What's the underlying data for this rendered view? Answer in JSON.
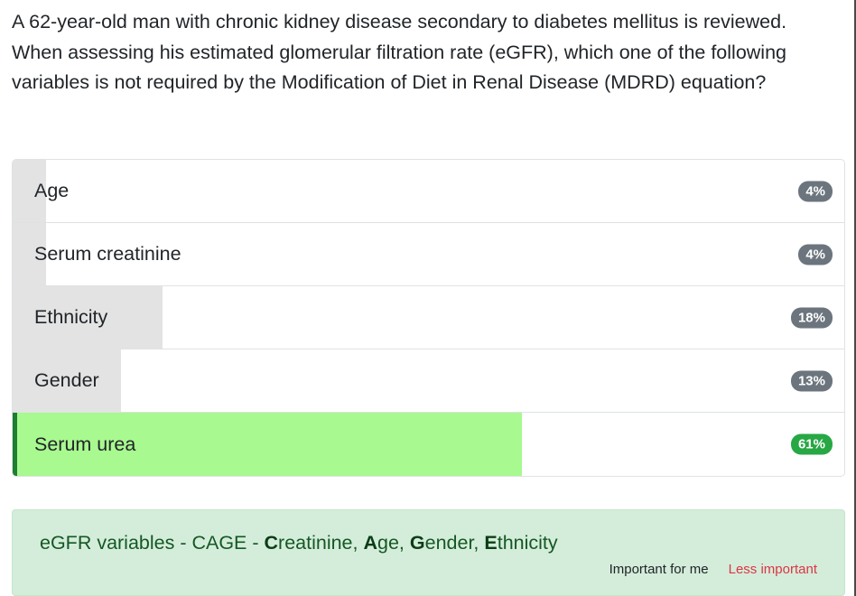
{
  "question": {
    "text": "A 62-year-old man with chronic kidney disease secondary to diabetes mellitus is reviewed. When assessing his estimated glomerular filtration rate (eGFR), which one of the following variables is not required by the Modification of Diet in Renal Disease (MDRD) equation?"
  },
  "answers": [
    {
      "label": "Age",
      "percent_label": "4%",
      "percent": 4,
      "correct": false
    },
    {
      "label": "Serum creatinine",
      "percent_label": "4%",
      "percent": 4,
      "correct": false
    },
    {
      "label": "Ethnicity",
      "percent_label": "18%",
      "percent": 18,
      "correct": false
    },
    {
      "label": "Gender",
      "percent_label": "13%",
      "percent": 13,
      "correct": false
    },
    {
      "label": "Serum urea",
      "percent_label": "61%",
      "percent": 61,
      "correct": true
    }
  ],
  "explanation": {
    "prefix": "eGFR variables - CAGE - ",
    "items": [
      {
        "initial": "C",
        "rest": "reatinine"
      },
      {
        "initial": "A",
        "rest": "ge"
      },
      {
        "initial": "G",
        "rest": "ender"
      },
      {
        "initial": "E",
        "rest": "thnicity"
      }
    ],
    "separator": ", ",
    "important_label": "Important for me",
    "less_important_label": "Less important"
  },
  "colors": {
    "correct_fill": "#a8f98f",
    "neutral_fill": "#e3e3e3",
    "correct_badge": "#28a745",
    "neutral_badge": "#6c757d",
    "explanation_bg": "#d4edda",
    "less_important": "#dc3545"
  }
}
